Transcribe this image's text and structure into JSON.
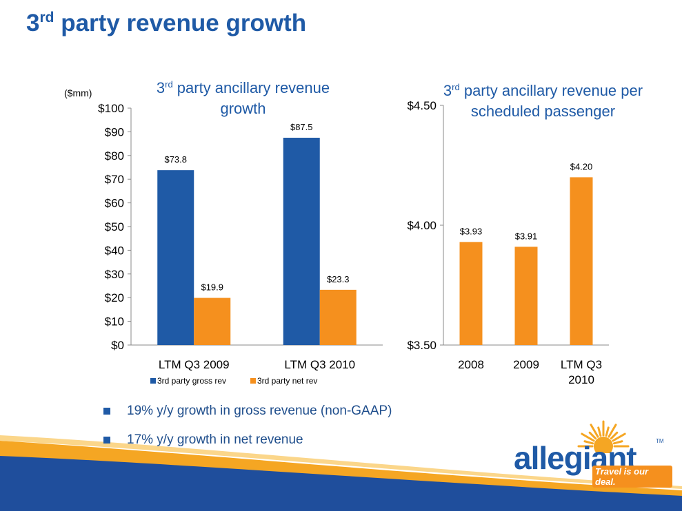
{
  "slide": {
    "title_main": "3",
    "title_sup": "rd",
    "title_rest": " party revenue growth",
    "colors": {
      "title": "#1f5aa6",
      "gross": "#1f5aa6",
      "net": "#f5901e"
    }
  },
  "left_chart": {
    "title_main": "3",
    "title_sup": "rd",
    "title_rest": " party ancillary revenue growth",
    "unit_label": "($mm)"
  },
  "right_chart": {
    "title_main": "3",
    "title_sup": "rd",
    "title_rest": " party ancillary revenue per scheduled passenger"
  },
  "bullets": [
    "19% y/y growth in gross revenue (non-GAAP)",
    "17% y/y growth in net revenue"
  ],
  "logo": {
    "word": "allegiant",
    "tagline": "Travel is our deal.",
    "tm": "TM",
    "icon": "sun-icon"
  },
  "chart_data": [
    {
      "type": "bar",
      "title": "3rd party ancillary revenue growth",
      "ylabel": "($mm)",
      "categories": [
        "LTM Q3 2009",
        "LTM Q3 2010"
      ],
      "series": [
        {
          "name": "3rd party gross rev",
          "color": "#1f5aa6",
          "values": [
            73.8,
            87.5
          ],
          "labels": [
            "$73.8",
            "$87.5"
          ]
        },
        {
          "name": "3rd party net rev",
          "color": "#f5901e",
          "values": [
            19.9,
            23.3
          ],
          "labels": [
            "$19.9",
            "$23.3"
          ]
        }
      ],
      "ylim": [
        0,
        100
      ],
      "yticks": [
        0,
        10,
        20,
        30,
        40,
        50,
        60,
        70,
        80,
        90,
        100
      ],
      "ytick_labels": [
        "$0",
        "$10",
        "$20",
        "$30",
        "$40",
        "$50",
        "$60",
        "$70",
        "$80",
        "$90",
        "$100"
      ],
      "legend": "bottom",
      "grid": false
    },
    {
      "type": "bar",
      "title": "3rd party ancillary revenue per scheduled passenger",
      "categories": [
        "2008",
        "2009",
        "LTM Q3 2010"
      ],
      "category_lines": [
        [
          "2008"
        ],
        [
          "2009"
        ],
        [
          "LTM Q3",
          "2010"
        ]
      ],
      "series": [
        {
          "color": "#f5901e",
          "values": [
            3.93,
            3.91,
            4.2
          ],
          "labels": [
            "$3.93",
            "$3.91",
            "$4.20"
          ]
        }
      ],
      "ylim": [
        3.5,
        4.5
      ],
      "yticks": [
        3.5,
        4.0,
        4.5
      ],
      "ytick_labels": [
        "$3.50",
        "$4.00",
        "$4.50"
      ],
      "grid": false
    }
  ]
}
